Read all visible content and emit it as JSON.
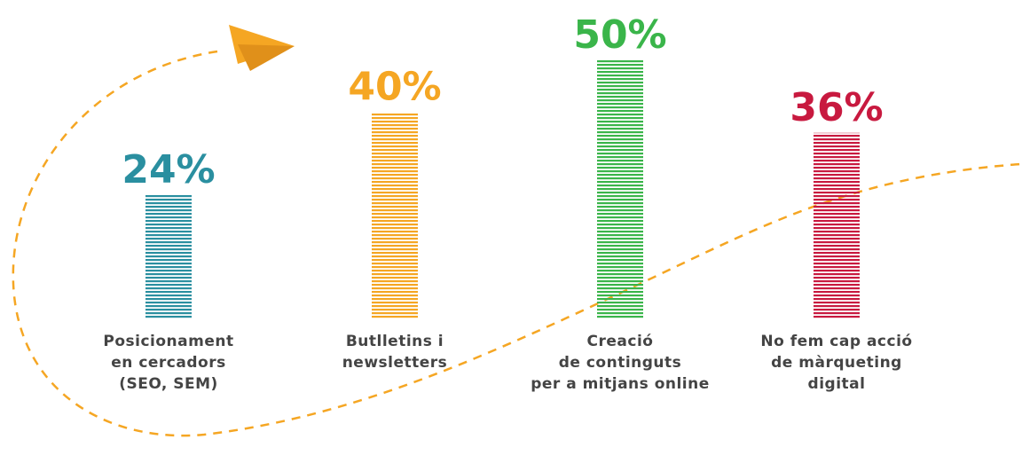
{
  "chart_data": {
    "type": "bar",
    "categories": [
      "Posicionament\nen cercadors\n(SEO, SEM)",
      "Butlletins i\nnewsletters",
      "Creació\nde continguts\nper a mitjans online",
      "No fem cap acció\nde màrqueting\ndigital"
    ],
    "values": [
      24,
      40,
      50,
      36
    ],
    "value_labels": [
      "24%",
      "40%",
      "50%",
      "36%"
    ],
    "colors": [
      "#2a8fa0",
      "#f5a623",
      "#3ab54a",
      "#c8193f"
    ],
    "ylim": [
      0,
      50
    ]
  }
}
